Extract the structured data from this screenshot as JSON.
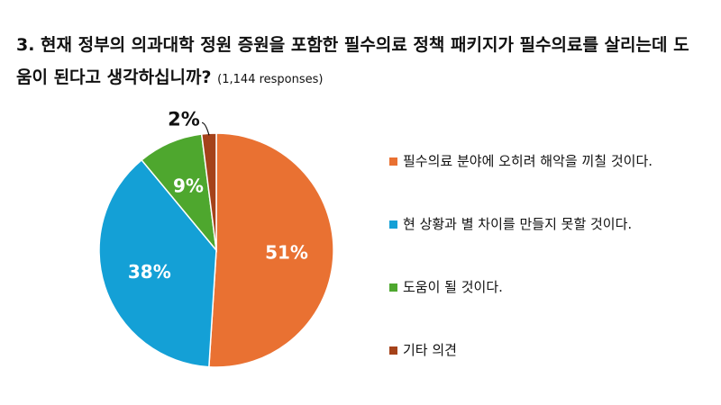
{
  "title": "3. 현재 정부의 의과대학 정원 증원을 포함한 필수의료 정책 패키지가 필수의료를 살리는데 도움이 된다고 생각하십니까?",
  "responses": "(1,144 responses)",
  "chart_data": {
    "type": "pie",
    "categories": [
      "필수의료 분야에 오히려 해악을 끼칠 것이다.",
      "현 상황과 별 차이를 만들지 못할 것이다.",
      "도움이 될 것이다.",
      "기타 의견"
    ],
    "values": [
      51,
      38,
      9,
      2
    ],
    "labels": [
      "51%",
      "38%",
      "9%",
      "2%"
    ],
    "colors": [
      "#E97132",
      "#14A0D6",
      "#4EA72E",
      "#A5421A"
    ],
    "legend_position": "right"
  }
}
